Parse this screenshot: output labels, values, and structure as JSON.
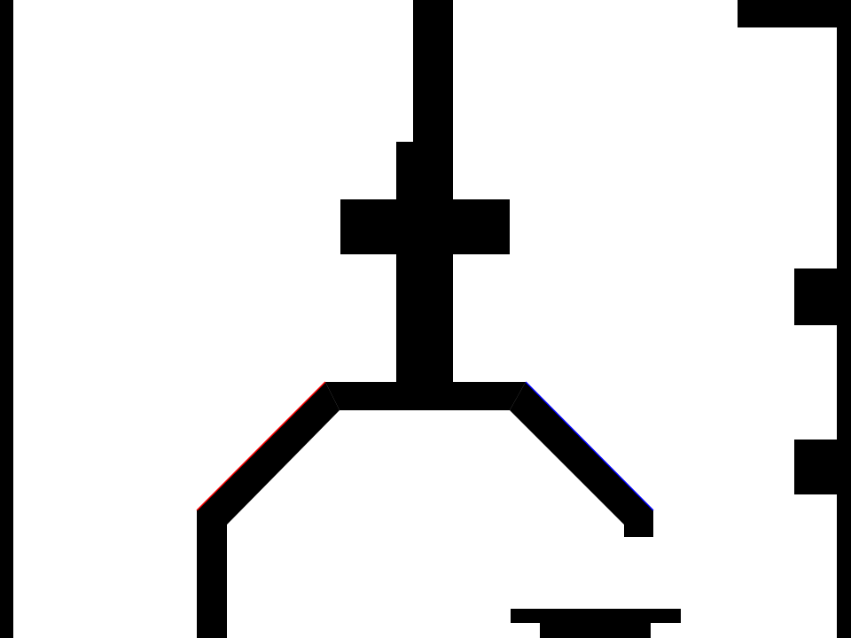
{
  "colors": {
    "background": "#ffffff",
    "line": "#000000",
    "accent_left": "#ff0000",
    "accent_right": "#0000ff"
  },
  "shapes": [
    "left-border",
    "right-border",
    "top-right-bar",
    "vertical-stem",
    "cross-bar",
    "v-arm-left",
    "v-arm-right",
    "left-leg",
    "right-leg-foot",
    "right-notch-upper",
    "right-notch-lower",
    "bottom-dash"
  ]
}
